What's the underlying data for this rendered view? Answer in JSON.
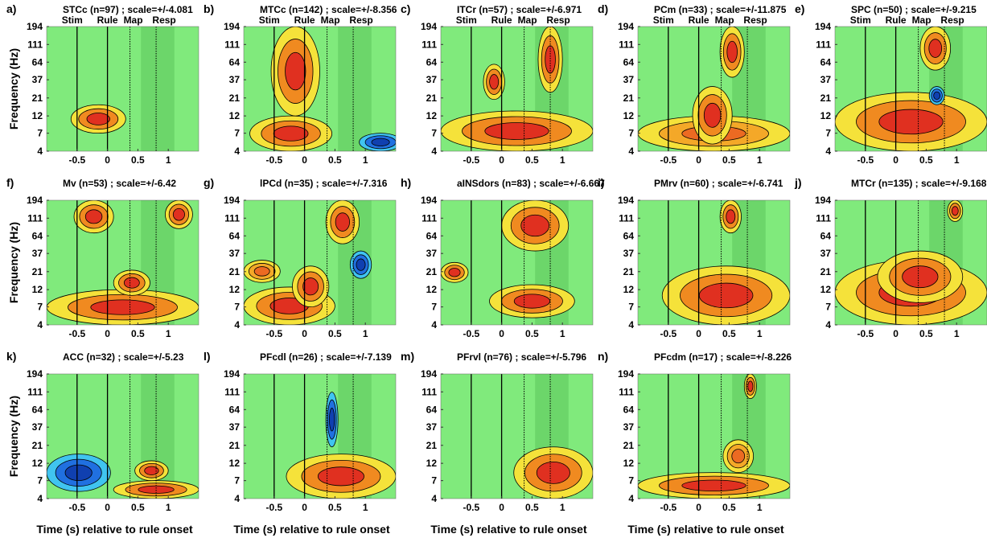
{
  "figure": {
    "ylabel": "Frequency (Hz)",
    "xlabel": "Time (s) relative to rule onset",
    "event_labels": [
      "Stim",
      "Rule",
      "Map",
      "Resp"
    ],
    "events": [
      -0.5,
      0,
      0.37,
      0.8
    ],
    "event_styles": [
      "solid",
      "solid",
      "dotted",
      "dotted"
    ],
    "shade": [
      0.55,
      1.1
    ],
    "background": "#80ea7c",
    "shade_color": "#6cd66a"
  },
  "chart_data": [
    {
      "type": "spectrogram",
      "panel_label": "a)",
      "title": "STCc (n=97) ; scale=+/-4.081",
      "show_event_labels": true,
      "xlim": [
        -1,
        1.5
      ],
      "ylim": [
        4,
        194
      ],
      "log_y": true,
      "xticks": [
        -0.5,
        0,
        0.5,
        1
      ],
      "yticks": [
        4,
        7,
        12,
        21,
        37,
        64,
        111,
        194
      ],
      "blobs": [
        {
          "t": [
            -0.6,
            0.3
          ],
          "f": [
            7,
            17
          ],
          "color": "#e03020"
        }
      ]
    },
    {
      "type": "spectrogram",
      "panel_label": "b)",
      "title": "MTCc (n=142) ; scale=+/-8.356",
      "show_event_labels": true,
      "xlim": [
        -1,
        1.5
      ],
      "ylim": [
        4,
        194
      ],
      "log_y": true,
      "xticks": [
        -0.5,
        0,
        0.5,
        1
      ],
      "yticks": [
        4,
        7,
        12,
        21,
        37,
        64,
        111,
        194
      ],
      "blobs": [
        {
          "t": [
            -0.9,
            0.45
          ],
          "f": [
            4,
            12
          ],
          "color": "#e03020"
        },
        {
          "t": [
            -0.55,
            0.25
          ],
          "f": [
            12,
            194
          ],
          "color": "#e03020"
        },
        {
          "t": [
            0.9,
            1.6
          ],
          "f": [
            4,
            7
          ],
          "color": "#2070e0"
        }
      ]
    },
    {
      "type": "spectrogram",
      "panel_label": "c)",
      "title": "ITCr (n=57) ; scale=+/-6.971",
      "show_event_labels": true,
      "xlim": [
        -1,
        1.5
      ],
      "ylim": [
        4,
        194
      ],
      "log_y": true,
      "xticks": [
        -0.5,
        0,
        0.5,
        1
      ],
      "yticks": [
        4,
        7,
        12,
        21,
        37,
        64,
        111,
        194
      ],
      "blobs": [
        {
          "t": [
            -1,
            1.5
          ],
          "f": [
            4,
            14
          ],
          "color": "#e03020"
        },
        {
          "t": [
            0.6,
            1
          ],
          "f": [
            25,
            194
          ],
          "color": "#e03020"
        },
        {
          "t": [
            -0.3,
            0.05
          ],
          "f": [
            20,
            60
          ],
          "color": "#e03020"
        }
      ]
    },
    {
      "type": "spectrogram",
      "panel_label": "d)",
      "title": "PCm (n=33) ; scale=+/-11.875",
      "show_event_labels": true,
      "xlim": [
        -1,
        1.5
      ],
      "ylim": [
        4,
        194
      ],
      "log_y": true,
      "xticks": [
        -0.5,
        0,
        0.5,
        1
      ],
      "yticks": [
        4,
        7,
        12,
        21,
        37,
        64,
        111,
        194
      ],
      "blobs": [
        {
          "t": [
            -1,
            1.5
          ],
          "f": [
            4,
            12
          ],
          "color": "#f5e23a"
        },
        {
          "t": [
            -0.1,
            0.55
          ],
          "f": [
            5,
            30
          ],
          "color": "#e03020"
        },
        {
          "t": [
            0.35,
            0.75
          ],
          "f": [
            40,
            194
          ],
          "color": "#e03020"
        }
      ]
    },
    {
      "type": "spectrogram",
      "panel_label": "e)",
      "title": "SPC (n=50) ; scale=+/-9.215",
      "show_event_labels": true,
      "xlim": [
        -1,
        1.5
      ],
      "ylim": [
        4,
        194
      ],
      "log_y": true,
      "xticks": [
        -0.5,
        0,
        0.5,
        1
      ],
      "yticks": [
        4,
        7,
        12,
        21,
        37,
        64,
        111,
        194
      ],
      "blobs": [
        {
          "t": [
            -1,
            1.5
          ],
          "f": [
            4,
            25
          ],
          "color": "#e03020"
        },
        {
          "t": [
            0.4,
            0.9
          ],
          "f": [
            50,
            194
          ],
          "color": "#e03020"
        },
        {
          "t": [
            0.55,
            0.8
          ],
          "f": [
            17,
            30
          ],
          "color": "#2070e0"
        }
      ]
    },
    {
      "type": "spectrogram",
      "panel_label": "f)",
      "title": "Mv (n=53) ; scale=+/-6.42",
      "show_event_labels": false,
      "xlim": [
        -1,
        1.5
      ],
      "ylim": [
        4,
        194
      ],
      "log_y": true,
      "xticks": [
        -0.5,
        0,
        0.5,
        1
      ],
      "yticks": [
        4,
        7,
        12,
        21,
        37,
        64,
        111,
        194
      ],
      "blobs": [
        {
          "t": [
            -1,
            1.5
          ],
          "f": [
            4,
            12
          ],
          "color": "#e03020"
        },
        {
          "t": [
            0.1,
            0.7
          ],
          "f": [
            10,
            22
          ],
          "color": "#e03020"
        },
        {
          "t": [
            -0.55,
            0.1
          ],
          "f": [
            70,
            194
          ],
          "color": "#e03020"
        },
        {
          "t": [
            0.95,
            1.4
          ],
          "f": [
            80,
            194
          ],
          "color": "#e03020"
        }
      ]
    },
    {
      "type": "spectrogram",
      "panel_label": "g)",
      "title": "lPCd (n=35) ; scale=+/-7.316",
      "show_event_labels": false,
      "xlim": [
        -1,
        1.5
      ],
      "ylim": [
        4,
        194
      ],
      "log_y": true,
      "xticks": [
        -0.5,
        0,
        0.5,
        1
      ],
      "yticks": [
        4,
        7,
        12,
        21,
        37,
        64,
        111,
        194
      ],
      "blobs": [
        {
          "t": [
            -1,
            0.5
          ],
          "f": [
            4,
            13
          ],
          "color": "#e03020"
        },
        {
          "t": [
            -0.2,
            0.4
          ],
          "f": [
            7,
            25
          ],
          "color": "#e03020"
        },
        {
          "t": [
            0.35,
            0.9
          ],
          "f": [
            50,
            194
          ],
          "color": "#e03020"
        },
        {
          "t": [
            0.75,
            1.1
          ],
          "f": [
            17,
            40
          ],
          "color": "#2070e0"
        },
        {
          "t": [
            -1,
            -0.4
          ],
          "f": [
            15,
            30
          ],
          "color": "#f5e23a"
        }
      ]
    },
    {
      "type": "spectrogram",
      "panel_label": "h)",
      "title": "aINSdors (n=83) ; scale=+/-6.667",
      "show_event_labels": false,
      "xlim": [
        -1,
        1.5
      ],
      "ylim": [
        4,
        194
      ],
      "log_y": true,
      "xticks": [
        -0.5,
        0,
        0.5,
        1
      ],
      "yticks": [
        4,
        7,
        12,
        21,
        37,
        64,
        111,
        194
      ],
      "blobs": [
        {
          "t": [
            -0.2,
            1.2
          ],
          "f": [
            5,
            14
          ],
          "color": "#e03020"
        },
        {
          "t": [
            -1,
            -0.55
          ],
          "f": [
            15,
            28
          ],
          "color": "#e03020"
        },
        {
          "t": [
            0,
            1.1
          ],
          "f": [
            40,
            194
          ],
          "color": "#e03020"
        }
      ]
    },
    {
      "type": "spectrogram",
      "panel_label": "i)",
      "title": "PMrv (n=60) ; scale=+/-6.741",
      "show_event_labels": false,
      "xlim": [
        -1,
        1.5
      ],
      "ylim": [
        4,
        194
      ],
      "log_y": true,
      "xticks": [
        -0.5,
        0,
        0.5,
        1
      ],
      "yticks": [
        4,
        7,
        12,
        21,
        37,
        64,
        111,
        194
      ],
      "blobs": [
        {
          "t": [
            -0.6,
            1.5
          ],
          "f": [
            4,
            25
          ],
          "color": "#e03020"
        },
        {
          "t": [
            0.35,
            0.7
          ],
          "f": [
            70,
            194
          ],
          "color": "#e03020"
        }
      ]
    },
    {
      "type": "spectrogram",
      "panel_label": "j)",
      "title": "MTCr (n=135) ; scale=+/-9.168",
      "show_event_labels": false,
      "xlim": [
        -1,
        1.5
      ],
      "ylim": [
        4,
        194
      ],
      "log_y": true,
      "xticks": [
        -0.5,
        0,
        0.5,
        1
      ],
      "yticks": [
        4,
        7,
        12,
        21,
        37,
        64,
        111,
        194
      ],
      "blobs": [
        {
          "t": [
            -1,
            1.5
          ],
          "f": [
            4,
            30
          ],
          "color": "#e03020"
        },
        {
          "t": [
            -0.3,
            1.1
          ],
          "f": [
            8,
            40
          ],
          "color": "#e03020"
        },
        {
          "t": [
            0.85,
            1.1
          ],
          "f": [
            100,
            194
          ],
          "color": "#e03020"
        }
      ]
    },
    {
      "type": "spectrogram",
      "panel_label": "k)",
      "title": "ACC (n=32) ; scale=+/-5.23",
      "show_event_labels": false,
      "xlim": [
        -1,
        1.5
      ],
      "ylim": [
        4,
        194
      ],
      "log_y": true,
      "xticks": [
        -0.5,
        0,
        0.5,
        1
      ],
      "yticks": [
        4,
        7,
        12,
        21,
        37,
        64,
        111,
        194
      ],
      "blobs": [
        {
          "t": [
            -1,
            0.05
          ],
          "f": [
            5,
            16
          ],
          "color": "#2070e0"
        },
        {
          "t": [
            0.1,
            1.5
          ],
          "f": [
            4,
            7
          ],
          "color": "#e03020"
        },
        {
          "t": [
            0.45,
            1
          ],
          "f": [
            7,
            13
          ],
          "color": "#e03020"
        }
      ]
    },
    {
      "type": "spectrogram",
      "panel_label": "l)",
      "title": "PFcdl (n=26) ; scale=+/-7.139",
      "show_event_labels": false,
      "xlim": [
        -1,
        1.5
      ],
      "ylim": [
        4,
        194
      ],
      "log_y": true,
      "xticks": [
        -0.5,
        0,
        0.5,
        1
      ],
      "yticks": [
        4,
        7,
        12,
        21,
        37,
        64,
        111,
        194
      ],
      "blobs": [
        {
          "t": [
            -0.3,
            1.5
          ],
          "f": [
            4,
            16
          ],
          "color": "#e03020"
        },
        {
          "t": [
            0.35,
            0.55
          ],
          "f": [
            20,
            110
          ],
          "color": "#2070e0"
        }
      ]
    },
    {
      "type": "spectrogram",
      "panel_label": "m)",
      "title": "PFrvl (n=76) ; scale=+/-5.796",
      "show_event_labels": false,
      "xlim": [
        -1,
        1.5
      ],
      "ylim": [
        4,
        194
      ],
      "log_y": true,
      "xticks": [
        -0.5,
        0,
        0.5,
        1
      ],
      "yticks": [
        4,
        7,
        12,
        21,
        37,
        64,
        111,
        194
      ],
      "blobs": [
        {
          "t": [
            0.2,
            1.5
          ],
          "f": [
            4,
            20
          ],
          "color": "#e03020"
        }
      ]
    },
    {
      "type": "spectrogram",
      "panel_label": "n)",
      "title": "PFcdm (n=17) ; scale=+/-8.226",
      "show_event_labels": false,
      "xlim": [
        -1,
        1.5
      ],
      "ylim": [
        4,
        194
      ],
      "log_y": true,
      "xticks": [
        -0.5,
        0,
        0.5,
        1
      ],
      "yticks": [
        4,
        7,
        12,
        21,
        37,
        64,
        111,
        194
      ],
      "blobs": [
        {
          "t": [
            -1,
            1.5
          ],
          "f": [
            4,
            9
          ],
          "color": "#e03020"
        },
        {
          "t": [
            0.75,
            0.95
          ],
          "f": [
            90,
            194
          ],
          "color": "#e03020"
        },
        {
          "t": [
            0.4,
            0.9
          ],
          "f": [
            9,
            25
          ],
          "color": "#f5e23a"
        }
      ]
    }
  ]
}
